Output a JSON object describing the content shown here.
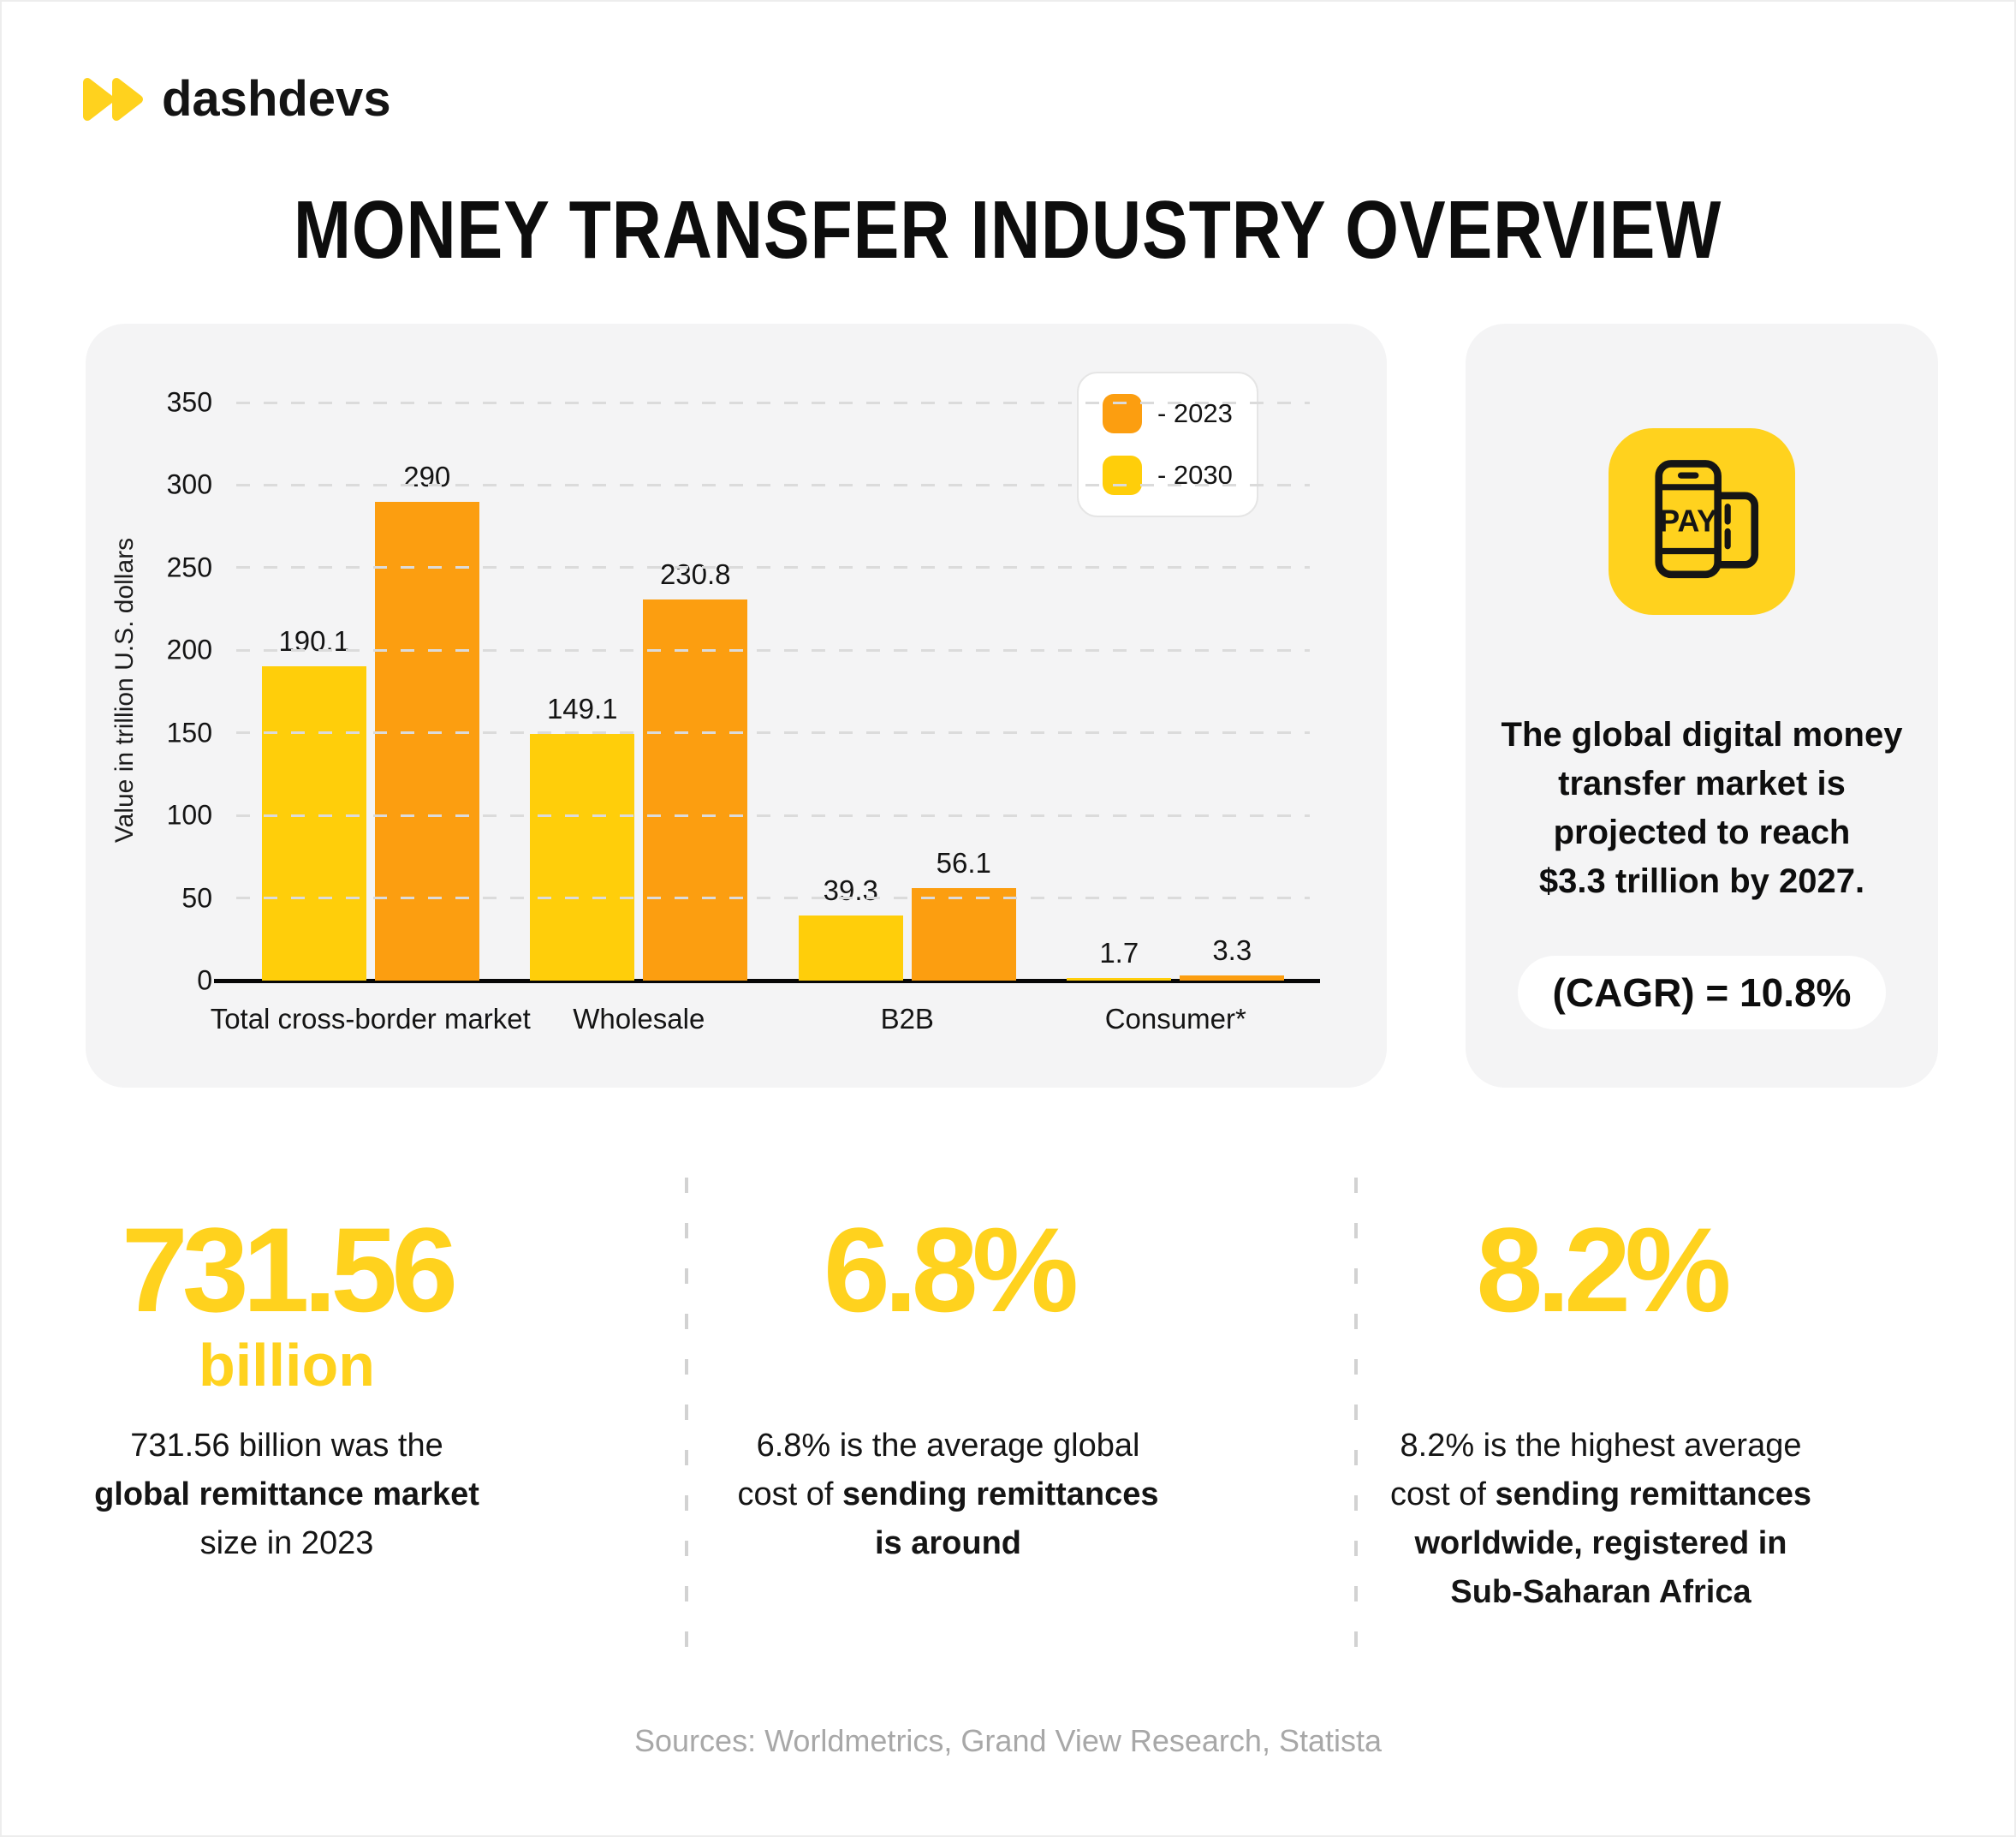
{
  "brand": {
    "name": "dashdevs",
    "logo_icon": "double-play-triangles",
    "accent_yellow": "#FFD21E"
  },
  "title": "MONEY TRANSFER INDUSTRY OVERVIEW",
  "colors": {
    "yellow_bar": "#FFCE0A",
    "orange_bar": "#FC9E10",
    "accent_yellow": "#FFD21E",
    "panel_bg": "#F4F4F5",
    "text": "#141414",
    "muted": "#A8A8A8"
  },
  "chart_data": {
    "type": "bar",
    "title": "",
    "xlabel": "",
    "ylabel": "Value in trillion U.S. dollars",
    "ylim": [
      0,
      350
    ],
    "yticks": [
      0,
      50,
      100,
      150,
      200,
      250,
      300,
      350
    ],
    "grid": "horizontal-dashed",
    "legend_position": "top-right",
    "categories": [
      "Total cross-border market",
      "Wholesale",
      "B2B",
      "Consumer*"
    ],
    "series": [
      {
        "name": "2030",
        "color": "#FFCE0A",
        "values": [
          190.1,
          149.1,
          39.3,
          1.7
        ],
        "labels": [
          "190.1",
          "149.1",
          "39.3",
          "1.7"
        ]
      },
      {
        "name": "2023",
        "color": "#FC9E10",
        "values": [
          290,
          230.8,
          56.1,
          3.3
        ],
        "labels": [
          "290",
          "230.8",
          "56.1",
          "3.3"
        ]
      }
    ],
    "legend": [
      {
        "label": "- 2023",
        "color": "#FC9E10"
      },
      {
        "label": "- 2030",
        "color": "#FFCE0A"
      }
    ]
  },
  "highlight_card": {
    "icon": "mobile-pay-icon",
    "lines": [
      "The global digital money",
      "transfer market is",
      "projected to reach",
      "$3.3 trillion by 2027."
    ],
    "badge": "(CAGR) = 10.8%"
  },
  "stats": [
    {
      "value": "731.56",
      "unit": "billion",
      "desc_lines": [
        [
          {
            "t": "731.56 billion was the",
            "b": false
          }
        ],
        [
          {
            "t": "global remittance market",
            "b": true
          }
        ],
        [
          {
            "t": "size in 2023",
            "b": false
          }
        ]
      ]
    },
    {
      "value": "6.8%",
      "desc_lines": [
        [
          {
            "t": "6.8% is the average global",
            "b": false
          }
        ],
        [
          {
            "t": "cost of ",
            "b": false
          },
          {
            "t": "sending remittances",
            "b": true
          }
        ],
        [
          {
            "t": "is around",
            "b": true
          }
        ]
      ]
    },
    {
      "value": "8.2%",
      "desc_lines": [
        [
          {
            "t": "8.2% is the highest average",
            "b": false
          }
        ],
        [
          {
            "t": "cost of ",
            "b": false
          },
          {
            "t": "sending remittances",
            "b": true
          }
        ],
        [
          {
            "t": "worldwide, registered in",
            "b": true
          }
        ],
        [
          {
            "t": "Sub-Saharan Africa",
            "b": true
          }
        ]
      ]
    }
  ],
  "footer": {
    "sources": "Sources: Worldmetrics, Grand View Research, Statista"
  }
}
